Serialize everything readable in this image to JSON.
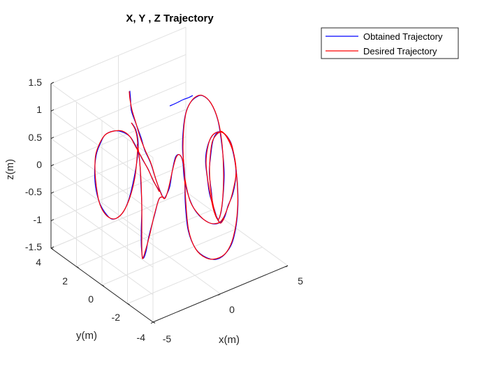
{
  "chart_data": {
    "type": "line",
    "title": "X, Y , Z Trajectory",
    "xlabel": "x(m)",
    "ylabel": "y(m)",
    "zlabel": "z(m)",
    "xlim": [
      -5,
      5
    ],
    "ylim": [
      -4,
      4
    ],
    "zlim": [
      -1.5,
      1.5
    ],
    "x_ticks": [
      "-5",
      "0",
      "5"
    ],
    "y_ticks": [
      "-4",
      "-2",
      "0",
      "2",
      "4"
    ],
    "z_ticks": [
      "-1.5",
      "-1",
      "-0.5",
      "0",
      "0.5",
      "1",
      "1.5"
    ],
    "grid": true,
    "view": "3d",
    "legend_position": "top-right",
    "series": [
      {
        "name": "Obtained Trajectory",
        "color": "#0000ff"
      },
      {
        "name": "Desired Trajectory",
        "color": "#ff0000"
      }
    ]
  }
}
